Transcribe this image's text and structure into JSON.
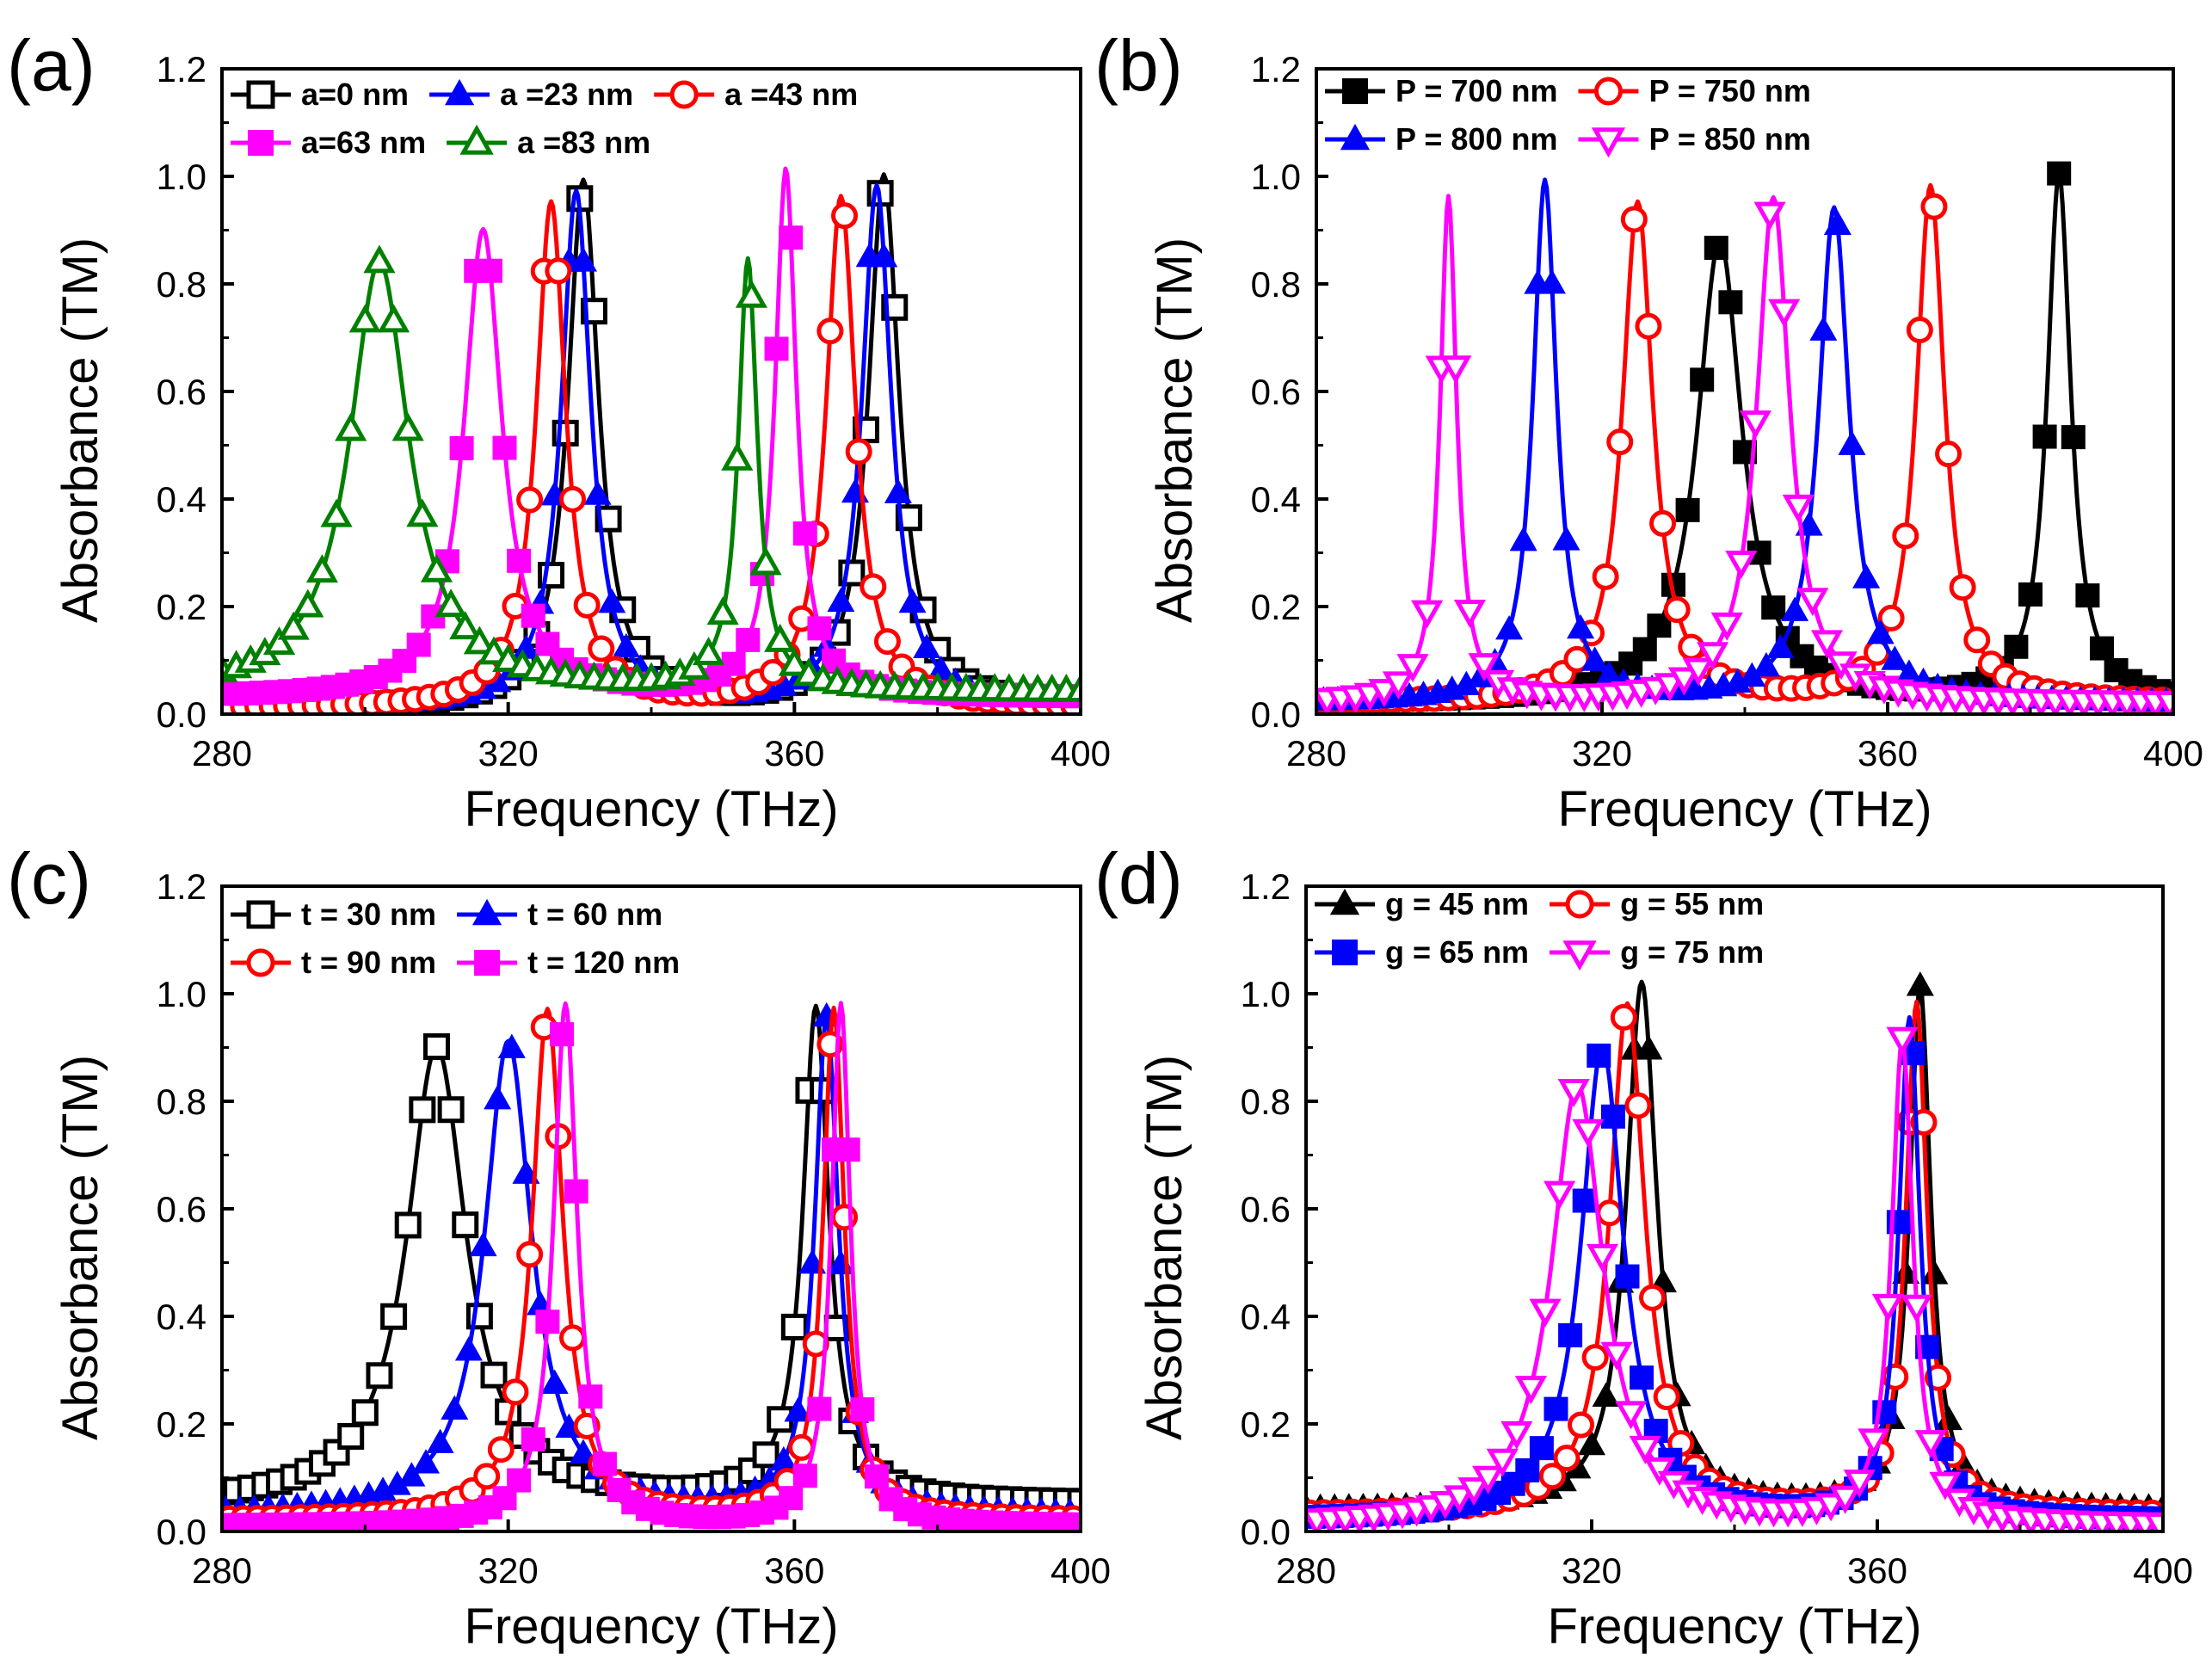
{
  "figure": {
    "description_free": true
  },
  "chart_data": [
    {
      "panel_label": "(a)",
      "type": "line",
      "xlabel": "Frequency (THz)",
      "ylabel": "Absorbance (TM)",
      "xlim": [
        280,
        400
      ],
      "ylim": [
        0.0,
        1.2
      ],
      "xticks": [
        280,
        320,
        360,
        400
      ],
      "yticks": [
        0.0,
        0.2,
        0.4,
        0.6,
        0.8,
        1.0,
        1.2
      ],
      "x_tick_labels": [
        "280",
        "320",
        "360",
        "400"
      ],
      "y_tick_labels": [
        "0.0",
        "0.2",
        "0.4",
        "0.6",
        "0.8",
        "1.0",
        "1.2"
      ],
      "legend_rows": [
        [
          0,
          1,
          2
        ],
        [
          3,
          4
        ]
      ],
      "series": [
        {
          "name": "a=0 nm",
          "color": "#000000",
          "marker": "square-open",
          "baseline": 0.01,
          "peaks": [
            {
              "x": 330.5,
              "height": 0.98,
              "width": 2.6
            },
            {
              "x": 372.5,
              "height": 0.99,
              "width": 2.6
            }
          ]
        },
        {
          "name": "a =23 nm",
          "color": "#0000ff",
          "marker": "triangle-up-filled",
          "baseline": 0.01,
          "peaks": [
            {
              "x": 329.5,
              "height": 0.96,
              "width": 2.5
            },
            {
              "x": 371.5,
              "height": 0.97,
              "width": 2.5
            }
          ]
        },
        {
          "name": "a =43 nm",
          "color": "#ff0000",
          "marker": "circle-open",
          "baseline": 0.01,
          "peaks": [
            {
              "x": 326.0,
              "height": 0.94,
              "width": 2.5
            },
            {
              "x": 366.5,
              "height": 0.95,
              "width": 2.5
            }
          ]
        },
        {
          "name": "a=63 nm",
          "color": "#ff00ff",
          "marker": "square-filled",
          "baseline": 0.03,
          "peaks": [
            {
              "x": 316.5,
              "height": 0.87,
              "width": 3.2
            },
            {
              "x": 358.8,
              "height": 0.98,
              "width": 1.8
            }
          ]
        },
        {
          "name": "a =83 nm",
          "color": "#008000",
          "marker": "triangle-up-open",
          "baseline": 0.04,
          "peaks": [
            {
              "x": 302.0,
              "height": 0.8,
              "width": 5.0
            },
            {
              "x": 353.5,
              "height": 0.8,
              "width": 1.6
            }
          ]
        }
      ]
    },
    {
      "panel_label": "(b)",
      "type": "line",
      "xlabel": "Frequency (THz)",
      "ylabel": "Absorbance (TM)",
      "xlim": [
        280,
        400
      ],
      "ylim": [
        0.0,
        1.2
      ],
      "xticks": [
        280,
        320,
        360,
        400
      ],
      "yticks": [
        0.0,
        0.2,
        0.4,
        0.6,
        0.8,
        1.0,
        1.2
      ],
      "x_tick_labels": [
        "280",
        "320",
        "360",
        "400"
      ],
      "y_tick_labels": [
        "0.0",
        "0.2",
        "0.4",
        "0.6",
        "0.8",
        "1.0",
        "1.2"
      ],
      "legend_rows": [
        [
          0,
          1
        ],
        [
          2,
          3
        ]
      ],
      "series": [
        {
          "name": "P = 700 nm",
          "color": "#000000",
          "marker": "square-filled",
          "baseline": 0.02,
          "peaks": [
            {
              "x": 336.5,
              "height": 0.86,
              "width": 3.8
            },
            {
              "x": 384.0,
              "height": 0.98,
              "width": 2.0
            }
          ]
        },
        {
          "name": "P = 750 nm",
          "color": "#ff0000",
          "marker": "circle-open",
          "baseline": 0.02,
          "peaks": [
            {
              "x": 325.0,
              "height": 0.93,
              "width": 2.6
            },
            {
              "x": 366.0,
              "height": 0.96,
              "width": 2.4
            }
          ]
        },
        {
          "name": "P = 800 nm",
          "color": "#0000ff",
          "marker": "triangle-up-filled",
          "baseline": 0.02,
          "peaks": [
            {
              "x": 312.0,
              "height": 0.97,
              "width": 2.0
            },
            {
              "x": 352.5,
              "height": 0.92,
              "width": 2.6
            }
          ]
        },
        {
          "name": "P = 850 nm",
          "color": "#ff00ff",
          "marker": "triangle-down-open",
          "baseline": 0.02,
          "peaks": [
            {
              "x": 298.5,
              "height": 0.94,
              "width": 1.4
            },
            {
              "x": 344.0,
              "height": 0.94,
              "width": 2.8
            }
          ]
        }
      ]
    },
    {
      "panel_label": "(c)",
      "type": "line",
      "xlabel": "Frequency (THz)",
      "ylabel": "Absorbance (TM)",
      "xlim": [
        280,
        400
      ],
      "ylim": [
        0.0,
        1.2
      ],
      "xticks": [
        280,
        320,
        360,
        400
      ],
      "yticks": [
        0.0,
        0.2,
        0.4,
        0.6,
        0.8,
        1.0,
        1.2
      ],
      "x_tick_labels": [
        "280",
        "320",
        "360",
        "400"
      ],
      "y_tick_labels": [
        "0.0",
        "0.2",
        "0.4",
        "0.6",
        "0.8",
        "1.0",
        "1.2"
      ],
      "legend_rows": [
        [
          0,
          1
        ],
        [
          2,
          3
        ]
      ],
      "series": [
        {
          "name": "t = 30 nm",
          "color": "#000000",
          "marker": "square-open",
          "baseline": 0.05,
          "peaks": [
            {
              "x": 310.0,
              "height": 0.85,
              "width": 5.0
            },
            {
              "x": 363.0,
              "height": 0.92,
              "width": 2.2
            }
          ]
        },
        {
          "name": "t = 60 nm",
          "color": "#0000ff",
          "marker": "triangle-up-filled",
          "baseline": 0.03,
          "peaks": [
            {
              "x": 320.0,
              "height": 0.88,
              "width": 4.0
            },
            {
              "x": 364.5,
              "height": 0.92,
              "width": 2.0
            }
          ]
        },
        {
          "name": "t = 90 nm",
          "color": "#ff0000",
          "marker": "circle-open",
          "baseline": 0.02,
          "peaks": [
            {
              "x": 325.5,
              "height": 0.95,
              "width": 2.6
            },
            {
              "x": 365.5,
              "height": 0.95,
              "width": 1.8
            }
          ]
        },
        {
          "name": "t = 120 nm",
          "color": "#ff00ff",
          "marker": "square-filled",
          "baseline": 0.01,
          "peaks": [
            {
              "x": 328.0,
              "height": 0.97,
              "width": 2.0
            },
            {
              "x": 366.5,
              "height": 0.97,
              "width": 1.6
            }
          ]
        }
      ]
    },
    {
      "panel_label": "(d)",
      "type": "line",
      "xlabel": "Frequency (THz)",
      "ylabel": "Absorbance (TM)",
      "xlim": [
        280,
        400
      ],
      "ylim": [
        0.0,
        1.2
      ],
      "xticks": [
        280,
        320,
        360,
        400
      ],
      "yticks": [
        0.0,
        0.2,
        0.4,
        0.6,
        0.8,
        1.0,
        1.2
      ],
      "x_tick_labels": [
        "280",
        "320",
        "360",
        "400"
      ],
      "y_tick_labels": [
        "0.0",
        "0.2",
        "0.4",
        "0.6",
        "0.8",
        "1.0",
        "1.2"
      ],
      "legend_rows": [
        [
          0,
          1
        ],
        [
          2,
          3
        ]
      ],
      "series": [
        {
          "name": "g = 45 nm",
          "color": "#000000",
          "marker": "triangle-up-filled",
          "baseline": 0.04,
          "peaks": [
            {
              "x": 327.0,
              "height": 0.98,
              "width": 2.6
            },
            {
              "x": 366.0,
              "height": 0.97,
              "width": 1.8
            }
          ]
        },
        {
          "name": "g = 55 nm",
          "color": "#ff0000",
          "marker": "circle-open",
          "baseline": 0.03,
          "peaks": [
            {
              "x": 325.0,
              "height": 0.95,
              "width": 3.0
            },
            {
              "x": 365.5,
              "height": 0.95,
              "width": 1.8
            }
          ]
        },
        {
          "name": "g = 65 nm",
          "color": "#0000ff",
          "marker": "square-filled",
          "baseline": 0.02,
          "peaks": [
            {
              "x": 321.5,
              "height": 0.88,
              "width": 3.6
            },
            {
              "x": 364.5,
              "height": 0.93,
              "width": 1.8
            }
          ]
        },
        {
          "name": "g = 75 nm",
          "color": "#ff00ff",
          "marker": "triangle-down-open",
          "baseline": 0.01,
          "peaks": [
            {
              "x": 318.0,
              "height": 0.82,
              "width": 4.4
            },
            {
              "x": 363.5,
              "height": 0.9,
              "width": 1.8
            }
          ]
        }
      ]
    }
  ]
}
